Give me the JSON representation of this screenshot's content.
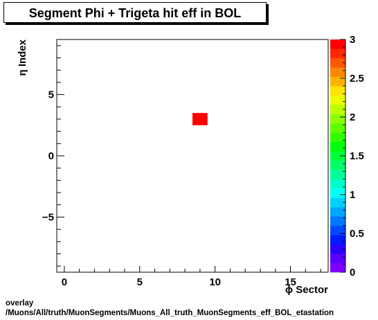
{
  "title": "Segment Phi + Trigeta hit eff in BOL",
  "footer": {
    "line1": "overlay",
    "line2": "/Muons/All/truth/MuonSegments/Muons_All_truth_MuonSegments_eff_BOL_etastation"
  },
  "chart_data": {
    "type": "heatmap",
    "title": "Segment Phi + Trigeta hit eff in BOL",
    "xlabel": "ϕ Sector",
    "ylabel": "η Index",
    "xlim": [
      -0.5,
      17.5
    ],
    "ylim": [
      -9.5,
      9.5
    ],
    "xticks": [
      0,
      5,
      10,
      15
    ],
    "yticks": [
      -5,
      0,
      5
    ],
    "ytick_labels": [
      "−5",
      "0",
      "5"
    ],
    "cells": [
      {
        "x": 9,
        "y": 3,
        "value": 3
      }
    ],
    "color_range": [
      0,
      3
    ],
    "colorbar_ticks": [
      "0",
      "0.5",
      "1",
      "1.5",
      "2",
      "2.5",
      "3"
    ],
    "palette": [
      "#7f00ff",
      "#5a00ff",
      "#2b00ff",
      "#0019ff",
      "#0048ff",
      "#0077ff",
      "#00a6ff",
      "#00d2ff",
      "#00fff6",
      "#00ffc8",
      "#00ff99",
      "#00ff6a",
      "#00ff3b",
      "#00ff0c",
      "#30ff00",
      "#5fff00",
      "#8eff00",
      "#bdff00",
      "#ecff00",
      "#ffe400",
      "#ffb500",
      "#ff8600",
      "#ff5700",
      "#ff2800",
      "#ff0000"
    ]
  }
}
